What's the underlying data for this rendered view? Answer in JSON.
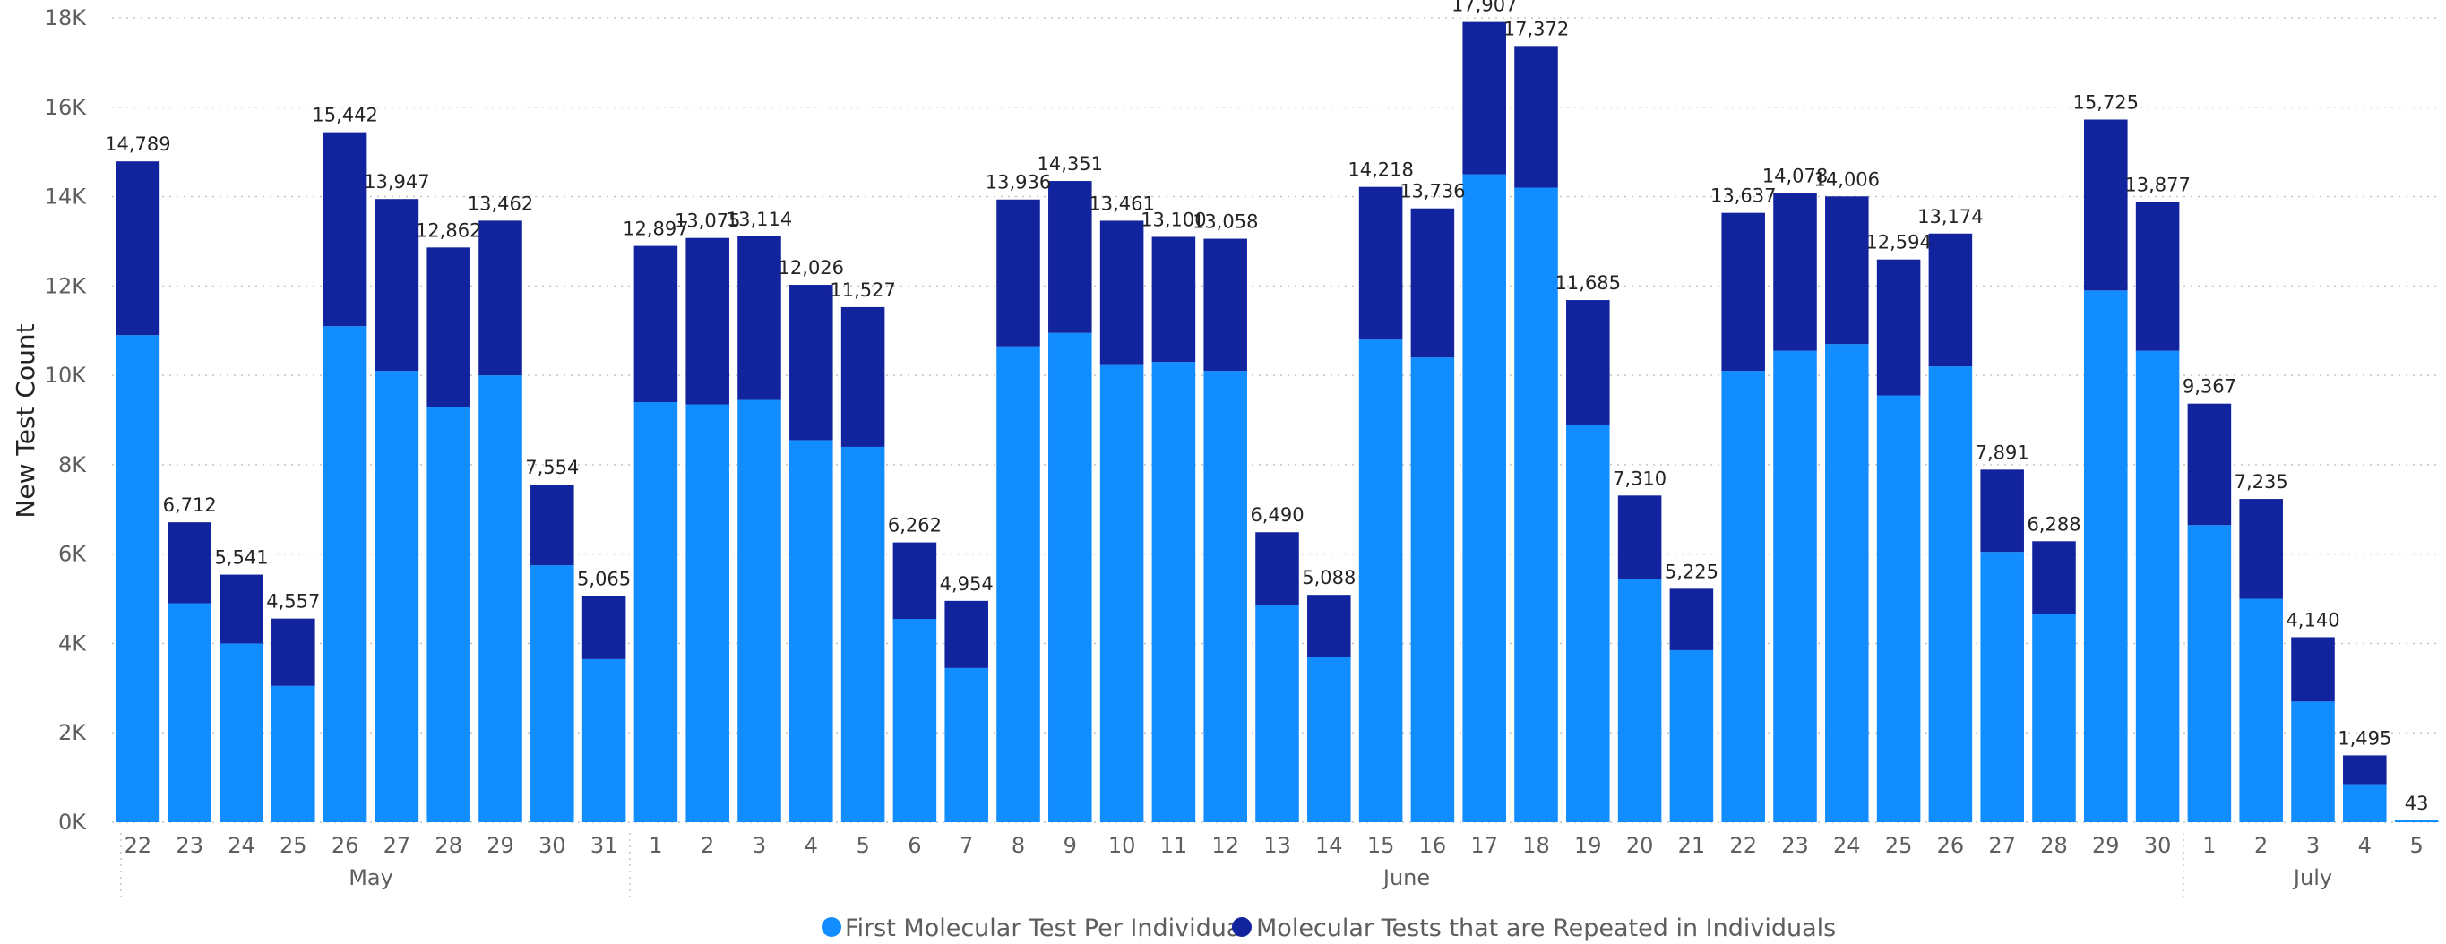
{
  "chart_data": {
    "type": "bar",
    "stacked": true,
    "ylabel": "New Test Count",
    "ylim": [
      0,
      18000
    ],
    "yticks": [
      "0K",
      "2K",
      "4K",
      "6K",
      "8K",
      "10K",
      "12K",
      "14K",
      "16K",
      "18K"
    ],
    "grid": true,
    "legend_position": "bottom-center",
    "categories": [
      "22",
      "23",
      "24",
      "25",
      "26",
      "27",
      "28",
      "29",
      "30",
      "31",
      "1",
      "2",
      "3",
      "4",
      "5",
      "6",
      "7",
      "8",
      "9",
      "10",
      "11",
      "12",
      "13",
      "14",
      "15",
      "16",
      "17",
      "18",
      "19",
      "20",
      "21",
      "22",
      "23",
      "24",
      "25",
      "26",
      "27",
      "28",
      "29",
      "30",
      "1",
      "2",
      "3",
      "4",
      "5"
    ],
    "month_groups": [
      {
        "label": "May",
        "start": 0,
        "end": 9
      },
      {
        "label": "June",
        "start": 10,
        "end": 39
      },
      {
        "label": "July",
        "start": 40,
        "end": 44
      }
    ],
    "series": [
      {
        "name": "First Molecular Test Per Individual",
        "color": "#118dff",
        "values": [
          10900,
          4900,
          4000,
          3050,
          11100,
          10100,
          9300,
          10000,
          5750,
          3650,
          9400,
          9350,
          9450,
          8550,
          8400,
          4550,
          3450,
          10650,
          10950,
          10250,
          10300,
          10100,
          4850,
          3700,
          10800,
          10400,
          14500,
          14200,
          8900,
          5450,
          3850,
          10100,
          10550,
          10700,
          9550,
          10200,
          6050,
          4650,
          11900,
          10550,
          6650,
          5000,
          2700,
          850,
          43
        ]
      },
      {
        "name": "Molecular Tests that are Repeated in Individuals",
        "color": "#12239e",
        "values": [
          3889,
          1812,
          1541,
          1507,
          4342,
          3847,
          3562,
          3462,
          1804,
          1415,
          3497,
          3725,
          3664,
          3476,
          3127,
          1712,
          1504,
          3286,
          3401,
          3211,
          2800,
          2958,
          1640,
          1388,
          3418,
          3336,
          3407,
          3172,
          2785,
          1860,
          1375,
          3537,
          3528,
          3306,
          3044,
          2974,
          1841,
          1638,
          3825,
          3327,
          2717,
          2235,
          1440,
          645,
          0
        ]
      }
    ],
    "totals": [
      "14,789",
      "6,712",
      "5,541",
      "4,557",
      "15,442",
      "13,947",
      "12,862",
      "13,462",
      "7,554",
      "5,065",
      "12,897",
      "13,075",
      "13,114",
      "12,026",
      "11,527",
      "6,262",
      "4,954",
      "13,936",
      "14,351",
      "13,461",
      "13,100",
      "13,058",
      "6,490",
      "5,088",
      "14,218",
      "13,736",
      "17,907",
      "17,372",
      "11,685",
      "7,310",
      "5,225",
      "13,637",
      "14,078",
      "14,006",
      "12,594",
      "13,174",
      "7,891",
      "6,288",
      "15,725",
      "13,877",
      "9,367",
      "7,235",
      "4,140",
      "1,495",
      "43"
    ]
  }
}
